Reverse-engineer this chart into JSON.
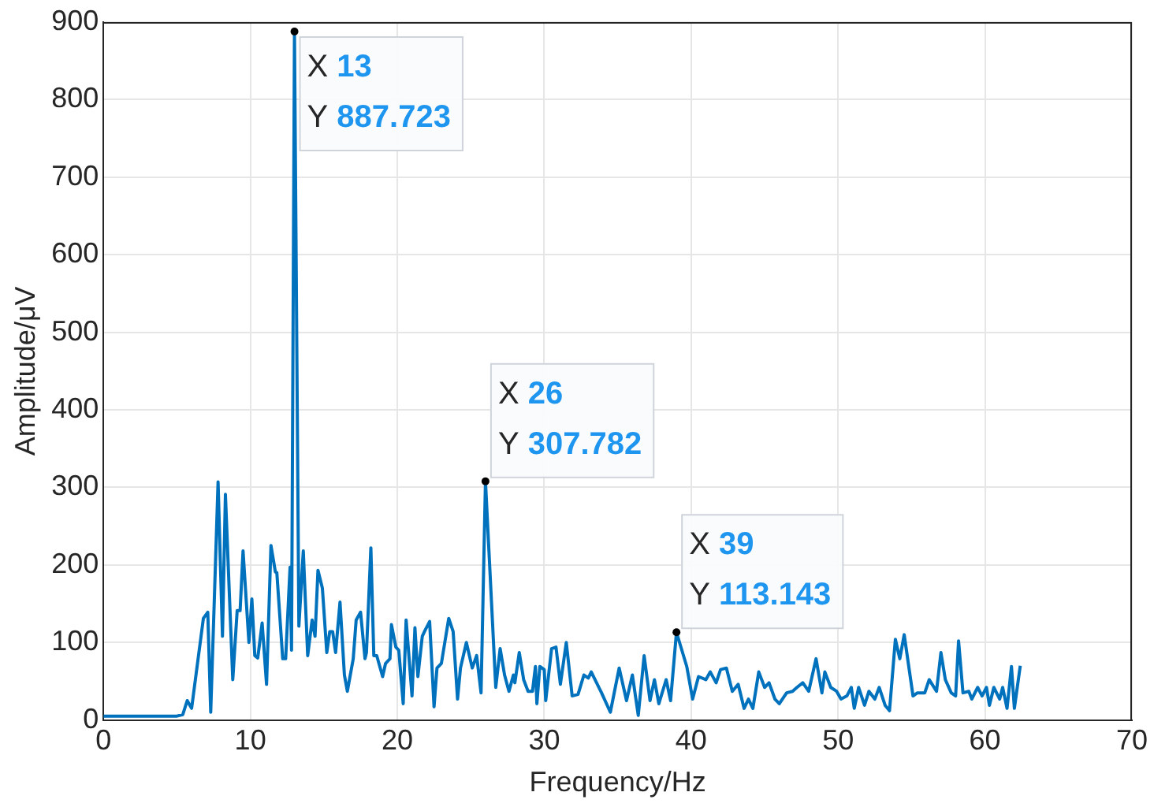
{
  "chart_data": {
    "type": "line",
    "xlabel": "Frequency/Hz",
    "ylabel": "Amplitude/μV",
    "xlim": [
      0,
      70
    ],
    "xticks": [
      0,
      10,
      20,
      30,
      40,
      50,
      60,
      70
    ],
    "ylim": [
      0,
      900
    ],
    "yticks": [
      0,
      100,
      200,
      300,
      400,
      500,
      600,
      700,
      800,
      900
    ],
    "grid": true,
    "legend": false,
    "marker": "none",
    "line_style": "solid",
    "annotations": [
      {
        "text": "X 13\nY 887.723",
        "x": 13,
        "y": 887.723
      },
      {
        "text": "X 26\nY 307.782",
        "x": 26,
        "y": 307.782
      },
      {
        "text": "X 39\nY 113.143",
        "x": 39,
        "y": 113.143
      }
    ],
    "series": [
      {
        "color": "#0072bd",
        "x": [
          0,
          5,
          5.4,
          5.7,
          6.0,
          6.8,
          7.1,
          7.3,
          7.8,
          8.1,
          8.3,
          8.8,
          9.1,
          9.3,
          9.5,
          9.9,
          10.1,
          10.3,
          10.5,
          10.8,
          11.1,
          11.4,
          11.7,
          11.8,
          12.2,
          12.4,
          12.7,
          12.8,
          13,
          13.3,
          13.6,
          13.9,
          14.2,
          14.4,
          14.6,
          14.9,
          15.2,
          15.4,
          15.6,
          15.8,
          16.1,
          16.4,
          16.6,
          17.0,
          17.2,
          17.5,
          17.8,
          17.9,
          18.2,
          18.4,
          18.6,
          19.0,
          19.2,
          19.5,
          19.6,
          19.9,
          20.1,
          20.4,
          20.6,
          21.0,
          21.2,
          21.4,
          21.7,
          21.9,
          22.2,
          22.5,
          22.7,
          23.0,
          23.5,
          23.8,
          24.1,
          24.3,
          24.7,
          25.1,
          25.4,
          25.7,
          26,
          26.7,
          27.0,
          27.3,
          27.6,
          27.9,
          28.0,
          28.3,
          28.6,
          28.9,
          29.2,
          29.4,
          29.5,
          29.7,
          30.0,
          30.1,
          30.5,
          30.8,
          31.1,
          31.5,
          31.9,
          32.3,
          32.7,
          33.0,
          33.2,
          33.9,
          34.5,
          35.1,
          35.6,
          36.0,
          36.4,
          36.8,
          37.2,
          37.5,
          37.8,
          38.3,
          38.6,
          39,
          39.7,
          40.1,
          40.5,
          41.0,
          41.3,
          41.7,
          42.0,
          42.4,
          42.8,
          43.2,
          43.6,
          43.9,
          44.2,
          44.6,
          45.0,
          45.3,
          45.7,
          46.0,
          46.5,
          46.9,
          47.2,
          47.6,
          48.0,
          48.5,
          48.9,
          49.1,
          49.5,
          49.9,
          50.2,
          50.6,
          50.9,
          51.1,
          51.4,
          51.8,
          52.1,
          52.5,
          52.8,
          53.2,
          53.5,
          53.9,
          54.2,
          54.5,
          55.1,
          55.4,
          55.9,
          56.2,
          56.7,
          57.0,
          57.3,
          57.7,
          58.0,
          58.2,
          58.5,
          58.9,
          59.1,
          59.5,
          59.8,
          60.1,
          60.3,
          60.6,
          61.0,
          61.2,
          61.5,
          61.8,
          62.0,
          62.4
        ],
        "values": [
          5,
          5,
          7,
          25,
          15,
          131,
          139,
          10,
          307,
          108,
          291,
          52,
          141,
          141,
          218,
          100,
          156,
          83,
          80,
          125,
          46,
          225,
          191,
          190,
          79,
          79,
          197,
          90,
          887.723,
          121,
          218,
          83,
          129,
          108,
          193,
          170,
          87,
          114,
          114,
          87,
          152,
          58,
          37,
          79,
          129,
          139,
          79,
          87,
          222,
          83,
          83,
          56,
          73,
          79,
          123,
          94,
          90,
          21,
          129,
          31,
          119,
          56,
          108,
          116,
          127,
          17,
          67,
          73,
          131,
          114,
          27,
          67,
          100,
          67,
          83,
          35,
          307.782,
          42,
          92,
          58,
          37,
          58,
          48,
          87,
          52,
          37,
          37,
          69,
          21,
          69,
          65,
          25,
          92,
          94,
          46,
          100,
          31,
          33,
          58,
          54,
          62,
          35,
          10,
          67,
          25,
          58,
          6,
          83,
          25,
          52,
          21,
          52,
          25,
          113.143,
          69,
          27,
          56,
          52,
          62,
          48,
          65,
          67,
          37,
          46,
          15,
          27,
          15,
          62,
          42,
          48,
          27,
          21,
          35,
          37,
          42,
          48,
          37,
          79,
          35,
          62,
          42,
          37,
          27,
          31,
          42,
          15,
          42,
          19,
          37,
          27,
          42,
          19,
          12,
          104,
          79,
          110,
          31,
          35,
          35,
          52,
          37,
          87,
          52,
          35,
          31,
          102,
          35,
          37,
          27,
          42,
          31,
          42,
          19,
          42,
          27,
          42,
          15,
          69,
          15,
          70
        ]
      }
    ]
  }
}
